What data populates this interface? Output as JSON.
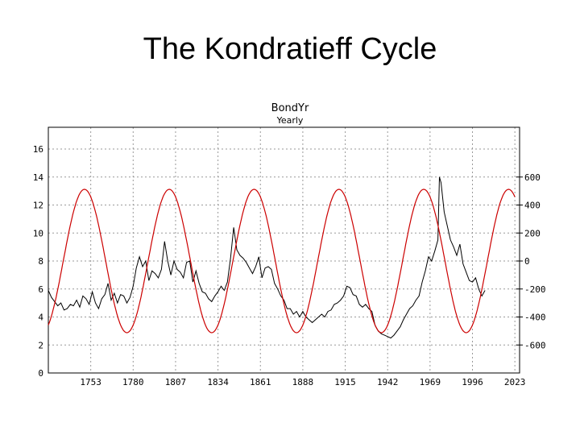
{
  "slide": {
    "title": "The Kondratieff Cycle"
  },
  "chart_data": {
    "type": "line",
    "title": "BondYr",
    "subtitle": "Yearly",
    "xlabel": "",
    "ylabel": "",
    "grid": true,
    "legend": "none",
    "xlim": [
      1726,
      2026
    ],
    "ylim": [
      0,
      16
    ],
    "y2lim": [
      -800,
      800
    ],
    "x_ticks": [
      "1753",
      "1780",
      "1807",
      "1834",
      "1861",
      "1888",
      "1915",
      "1942",
      "1969",
      "1996",
      "2023"
    ],
    "x_tick_values": [
      1753,
      1780,
      1807,
      1834,
      1861,
      1888,
      1915,
      1942,
      1969,
      1996,
      2023
    ],
    "y_ticks": [
      "0",
      "2",
      "4",
      "6",
      "8",
      "10",
      "12",
      "14",
      "16"
    ],
    "y_tick_values": [
      0,
      2,
      4,
      6,
      8,
      10,
      12,
      14,
      16
    ],
    "y2_ticks": [
      "600",
      "400",
      "200",
      "0",
      "-200",
      "-400",
      "-600"
    ],
    "y2_tick_values": [
      600,
      400,
      200,
      0,
      -200,
      -400,
      -600
    ],
    "series": [
      {
        "axis": "left",
        "color": "#000000",
        "x": [
          1726,
          1728,
          1730,
          1732,
          1734,
          1736,
          1738,
          1740,
          1742,
          1744,
          1746,
          1748,
          1750,
          1752,
          1754,
          1756,
          1758,
          1760,
          1762,
          1764,
          1766,
          1768,
          1770,
          1772,
          1774,
          1776,
          1778,
          1780,
          1782,
          1784,
          1786,
          1788,
          1790,
          1792,
          1794,
          1796,
          1798,
          1800,
          1802,
          1804,
          1806,
          1808,
          1810,
          1812,
          1814,
          1816,
          1818,
          1820,
          1822,
          1824,
          1826,
          1828,
          1830,
          1832,
          1834,
          1836,
          1838,
          1840,
          1842,
          1844,
          1846,
          1848,
          1850,
          1852,
          1854,
          1856,
          1858,
          1860,
          1862,
          1864,
          1866,
          1868,
          1870,
          1872,
          1874,
          1876,
          1878,
          1880,
          1882,
          1884,
          1886,
          1888,
          1890,
          1892,
          1894,
          1896,
          1898,
          1900,
          1902,
          1904,
          1906,
          1908,
          1910,
          1912,
          1914,
          1916,
          1918,
          1920,
          1922,
          1924,
          1926,
          1928,
          1930,
          1932,
          1934,
          1936,
          1938,
          1940,
          1942,
          1944,
          1946,
          1948,
          1950,
          1952,
          1954,
          1956,
          1958,
          1960,
          1962,
          1964,
          1966,
          1968,
          1970,
          1972,
          1974,
          1975,
          1976,
          1978,
          1980,
          1982,
          1984,
          1986,
          1988,
          1990,
          1992,
          1994,
          1996,
          1998,
          2000,
          2002,
          2004
        ],
        "values": [
          5.9,
          5.4,
          5.1,
          4.8,
          5.0,
          4.5,
          4.6,
          4.9,
          4.8,
          5.2,
          4.7,
          5.5,
          5.3,
          4.9,
          5.8,
          5.0,
          4.6,
          5.3,
          5.6,
          6.4,
          5.2,
          5.7,
          5.0,
          5.6,
          5.5,
          5.0,
          5.4,
          6.2,
          7.5,
          8.3,
          7.6,
          8.0,
          6.6,
          7.3,
          7.1,
          6.8,
          7.4,
          9.4,
          8.0,
          7.0,
          8.0,
          7.4,
          7.2,
          6.8,
          7.9,
          8.0,
          6.5,
          7.3,
          6.4,
          5.8,
          5.7,
          5.3,
          5.1,
          5.5,
          5.8,
          6.2,
          5.9,
          6.5,
          8.2,
          10.4,
          8.8,
          8.4,
          8.2,
          7.9,
          7.5,
          7.1,
          7.6,
          8.3,
          6.8,
          7.5,
          7.6,
          7.4,
          6.4,
          6.0,
          5.5,
          5.2,
          4.6,
          4.6,
          4.2,
          4.4,
          4.0,
          4.4,
          4.0,
          3.8,
          3.6,
          3.8,
          4.0,
          4.2,
          4.0,
          4.4,
          4.5,
          4.9,
          5.0,
          5.2,
          5.5,
          6.2,
          6.1,
          5.6,
          5.5,
          4.9,
          4.7,
          4.9,
          4.6,
          4.4,
          3.4,
          3.0,
          2.8,
          2.7,
          2.6,
          2.5,
          2.7,
          3.0,
          3.3,
          3.8,
          4.2,
          4.6,
          4.8,
          5.2,
          5.5,
          6.5,
          7.3,
          8.3,
          8.0,
          8.7,
          9.5,
          14.0,
          13.6,
          11.5,
          10.5,
          9.5,
          9.0,
          8.4,
          9.2,
          7.8,
          7.2,
          6.6,
          6.5,
          6.8,
          6.0,
          5.5,
          5.9
        ]
      },
      {
        "axis": "right",
        "color": "#cc0000",
        "period_years": 54,
        "peak_year": 1749,
        "amplitude": 512,
        "x_range": [
          1726,
          2023
        ]
      }
    ]
  }
}
